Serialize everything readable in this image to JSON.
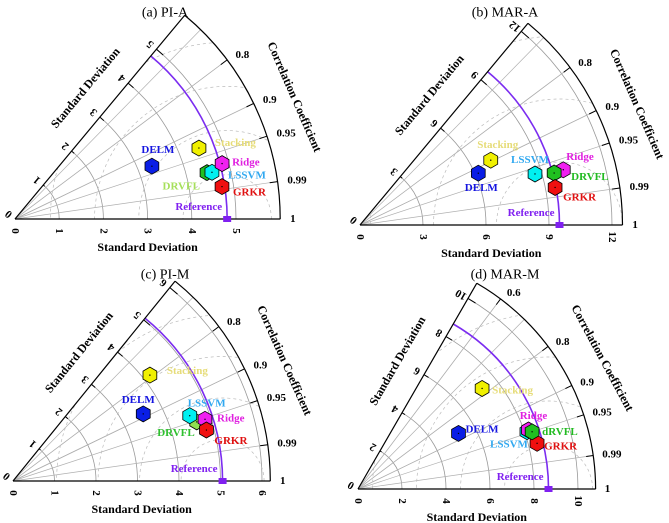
{
  "models": {
    "DELM": {
      "marker_color": "#0a1ee6",
      "label_color": "#1515e0"
    },
    "Stacking": {
      "marker_color": "#f0f000",
      "label_color": "#e6dc78"
    },
    "Ridge": {
      "marker_color": "#f020f0",
      "label_color": "#e020e0"
    },
    "LSSVM": {
      "marker_color": "#00f0f0",
      "label_color": "#30a8f0"
    },
    "DRVFL": {
      "marker_color": "#20c020",
      "label_color": "#22bb22"
    },
    "GRKR": {
      "marker_color": "#f01010",
      "label_color": "#e01010"
    },
    "Reference": {
      "marker_color": "#8020f0",
      "label_color": "#8020f0"
    }
  },
  "chart_data": [
    {
      "type": "taylor",
      "title": "(a) PI-A",
      "xlabel": "Standard Deviation",
      "ylabel": "Standard Deviation",
      "angular_label": "Correlation Coefficient",
      "std_ticks": [
        0,
        1,
        2,
        3,
        4,
        5
      ],
      "std_max": 6,
      "corr_ticks": [
        0.8,
        0.9,
        0.95,
        0.99,
        1
      ],
      "corr_min": 0.64,
      "reference": {
        "name": "Reference",
        "std": 4.8
      },
      "points": [
        {
          "name": "DELM",
          "std": 3.32,
          "corr": 0.933
        },
        {
          "name": "Stacking",
          "std": 4.46,
          "corr": 0.933
        },
        {
          "name": "DRVFL",
          "label": "DRVFL",
          "std": 4.47,
          "corr": 0.972,
          "label_color": "#a6e05a"
        },
        {
          "name": "LSSVM",
          "std": 4.58,
          "corr": 0.973
        },
        {
          "name": "Ridge",
          "std": 4.85,
          "corr": 0.966
        },
        {
          "name": "GRKR",
          "std": 4.74,
          "corr": 0.988
        }
      ]
    },
    {
      "type": "taylor",
      "title": "(b) MAR-A",
      "xlabel": "Standard Deviation",
      "ylabel": "Standard Deviation",
      "angular_label": "Correlation Coefficient",
      "std_ticks": [
        0,
        3,
        6,
        9,
        12
      ],
      "std_max": 12.5,
      "corr_ticks": [
        0.8,
        0.9,
        0.95,
        0.99,
        1
      ],
      "corr_min": 0.64,
      "reference": {
        "name": "Reference",
        "std": 9.5
      },
      "points": [
        {
          "name": "Stacking",
          "std": 6.95,
          "corr": 0.896
        },
        {
          "name": "DELM",
          "std": 6.15,
          "corr": 0.916
        },
        {
          "name": "LSSVM",
          "std": 8.68,
          "corr": 0.96
        },
        {
          "name": "Ridge",
          "std": 10.03,
          "corr": 0.965
        },
        {
          "name": "DRVFL",
          "label": "DRVFL",
          "std": 9.57,
          "corr": 0.966
        },
        {
          "name": "GRKR",
          "std": 9.46,
          "corr": 0.982
        }
      ]
    },
    {
      "type": "taylor",
      "title": "(c) PI-M",
      "xlabel": "Standard Deviation",
      "ylabel": "Standard Deviation",
      "angular_label": "Correlation Coefficient",
      "std_ticks": [
        0,
        1,
        2,
        3,
        4,
        5,
        6
      ],
      "std_max": 6.2,
      "corr_ticks": [
        0.8,
        0.9,
        0.95,
        0.99,
        1
      ],
      "corr_min": 0.63,
      "reference": {
        "name": "Reference",
        "std": 5.05
      },
      "points": [
        {
          "name": "Stacking",
          "std": 4.17,
          "corr": 0.791
        },
        {
          "name": "DELM",
          "std": 3.53,
          "corr": 0.889
        },
        {
          "name": "DRVFL",
          "label": "DRVFL",
          "std": 4.65,
          "corr": 0.952,
          "marker_color": "#90e050",
          "label_color": "#30c030"
        },
        {
          "name": "Ridge",
          "std": 4.86,
          "corr": 0.952
        },
        {
          "name": "GRKR",
          "std": 4.82,
          "corr": 0.967
        },
        {
          "name": "LSSVM",
          "std": 4.54,
          "corr": 0.938
        }
      ]
    },
    {
      "type": "taylor",
      "title": "(d) MAR-M",
      "xlabel": "Standard Deviation",
      "ylabel": "Standard Deviation",
      "angular_label": "Correlation Coefficient",
      "std_ticks": [
        0,
        2,
        4,
        6,
        8,
        10
      ],
      "std_max": 10.8,
      "corr_ticks": [
        0.6,
        0.8,
        0.9,
        0.95,
        0.99,
        1
      ],
      "corr_min": 0.5,
      "reference": {
        "name": "Reference",
        "std": 8.66
      },
      "points": [
        {
          "name": "Stacking",
          "std": 7.26,
          "corr": 0.777
        },
        {
          "name": "DELM",
          "std": 5.22,
          "corr": 0.875
        },
        {
          "name": "GRKR",
          "std": 8.4,
          "corr": 0.969
        },
        {
          "name": "LSSVM",
          "std": 8.11,
          "corr": 0.947
        },
        {
          "name": "Ridge",
          "std": 8.2,
          "corr": 0.945
        },
        {
          "name": "DRVFL",
          "label": "dRVFL",
          "std": 8.33,
          "corr": 0.95
        }
      ]
    }
  ]
}
